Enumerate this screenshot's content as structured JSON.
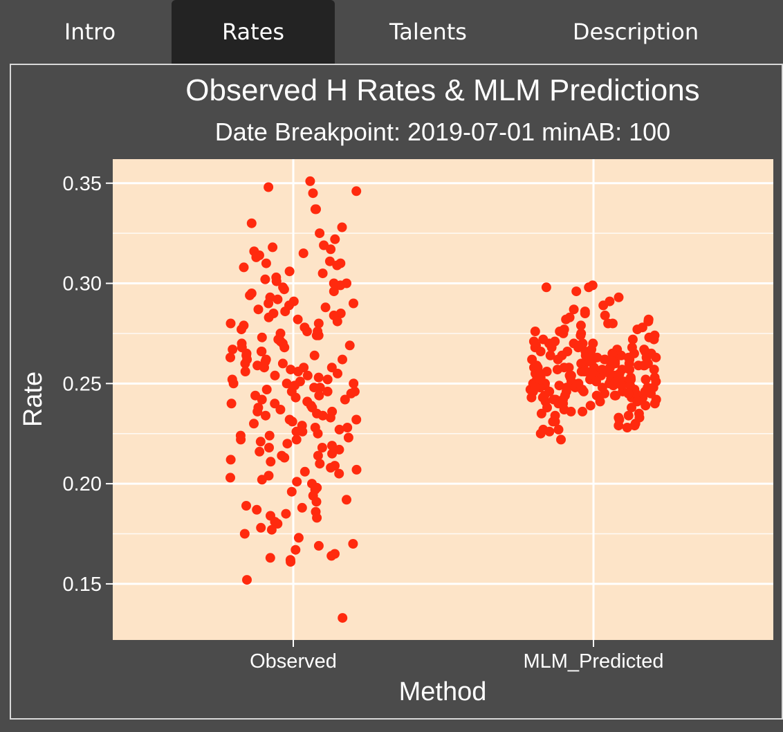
{
  "tabs": [
    {
      "label": "Intro",
      "active": false
    },
    {
      "label": "Rates",
      "active": true
    },
    {
      "label": "Talents",
      "active": false
    },
    {
      "label": "Description",
      "active": false
    }
  ],
  "chart_data": {
    "type": "scatter",
    "title": "Observed H Rates & MLM Predictions",
    "subtitle": "Date Breakpoint: 2019-07-01  minAB: 100",
    "xlabel": "Method",
    "ylabel": "Rate",
    "categories": [
      "Observed",
      "MLM_Predicted"
    ],
    "ylim": [
      0.122,
      0.362
    ],
    "yticks": [
      0.15,
      0.2,
      0.25,
      0.3,
      0.35
    ],
    "ytick_labels": [
      "0.15",
      "0.20",
      "0.25",
      "0.30",
      "0.35"
    ],
    "grid": true,
    "jitter": true,
    "point_color": "#ff2a0e",
    "panel_background": "#fde4c8",
    "series": [
      {
        "category": "Observed",
        "values": [
          0.345,
          0.348,
          0.351,
          0.346,
          0.337,
          0.337,
          0.33,
          0.328,
          0.325,
          0.322,
          0.319,
          0.318,
          0.317,
          0.316,
          0.315,
          0.314,
          0.313,
          0.311,
          0.31,
          0.309,
          0.308,
          0.306,
          0.305,
          0.303,
          0.302,
          0.301,
          0.3,
          0.299,
          0.298,
          0.297,
          0.296,
          0.295,
          0.294,
          0.293,
          0.292,
          0.291,
          0.29,
          0.289,
          0.288,
          0.287,
          0.286,
          0.285,
          0.284,
          0.283,
          0.282,
          0.281,
          0.28,
          0.279,
          0.278,
          0.277,
          0.276,
          0.275,
          0.274,
          0.273,
          0.272,
          0.271,
          0.27,
          0.269,
          0.268,
          0.267,
          0.266,
          0.265,
          0.264,
          0.263,
          0.262,
          0.261,
          0.26,
          0.259,
          0.258,
          0.257,
          0.256,
          0.255,
          0.254,
          0.253,
          0.252,
          0.251,
          0.25,
          0.249,
          0.248,
          0.247,
          0.246,
          0.245,
          0.244,
          0.243,
          0.242,
          0.241,
          0.24,
          0.239,
          0.238,
          0.237,
          0.236,
          0.235,
          0.234,
          0.233,
          0.232,
          0.231,
          0.23,
          0.229,
          0.228,
          0.227,
          0.226,
          0.225,
          0.224,
          0.223,
          0.222,
          0.221,
          0.22,
          0.219,
          0.218,
          0.217,
          0.216,
          0.215,
          0.214,
          0.213,
          0.212,
          0.211,
          0.21,
          0.209,
          0.208,
          0.207,
          0.206,
          0.205,
          0.204,
          0.203,
          0.202,
          0.201,
          0.2,
          0.198,
          0.197,
          0.196,
          0.194,
          0.192,
          0.191,
          0.189,
          0.188,
          0.187,
          0.186,
          0.185,
          0.184,
          0.183,
          0.181,
          0.18,
          0.178,
          0.177,
          0.175,
          0.173,
          0.17,
          0.169,
          0.167,
          0.165,
          0.164,
          0.163,
          0.162,
          0.161,
          0.152,
          0.133,
          0.285,
          0.28,
          0.276,
          0.272,
          0.268,
          0.264,
          0.26,
          0.256,
          0.252,
          0.248,
          0.244,
          0.24,
          0.236,
          0.232,
          0.228,
          0.224,
          0.27,
          0.262,
          0.254,
          0.246,
          0.238,
          0.266,
          0.258,
          0.25,
          0.242,
          0.234,
          0.29,
          0.3,
          0.31,
          0.226,
          0.218,
          0.222,
          0.214,
          0.274,
          0.258,
          0.262,
          0.246,
          0.25
        ]
      },
      {
        "category": "MLM_Predicted",
        "values": [
          0.298,
          0.299,
          0.298,
          0.296,
          0.293,
          0.291,
          0.289,
          0.287,
          0.286,
          0.285,
          0.284,
          0.283,
          0.282,
          0.281,
          0.28,
          0.279,
          0.278,
          0.277,
          0.276,
          0.275,
          0.274,
          0.273,
          0.272,
          0.271,
          0.27,
          0.269,
          0.268,
          0.267,
          0.266,
          0.265,
          0.264,
          0.263,
          0.262,
          0.261,
          0.26,
          0.259,
          0.258,
          0.257,
          0.256,
          0.255,
          0.254,
          0.253,
          0.252,
          0.251,
          0.25,
          0.249,
          0.248,
          0.247,
          0.246,
          0.245,
          0.244,
          0.243,
          0.242,
          0.241,
          0.24,
          0.239,
          0.238,
          0.237,
          0.236,
          0.235,
          0.234,
          0.233,
          0.232,
          0.231,
          0.23,
          0.229,
          0.228,
          0.227,
          0.226,
          0.225,
          0.222,
          0.27,
          0.266,
          0.262,
          0.258,
          0.254,
          0.25,
          0.246,
          0.242,
          0.268,
          0.264,
          0.26,
          0.256,
          0.252,
          0.248,
          0.244,
          0.272,
          0.266,
          0.261,
          0.257,
          0.253,
          0.249,
          0.245,
          0.241,
          0.263,
          0.259,
          0.255,
          0.251,
          0.247,
          0.243,
          0.276,
          0.271,
          0.265,
          0.26,
          0.256,
          0.252,
          0.248,
          0.244,
          0.239,
          0.267,
          0.263,
          0.258,
          0.254,
          0.25,
          0.246,
          0.242,
          0.269,
          0.264,
          0.259,
          0.255,
          0.251,
          0.247,
          0.243,
          0.274,
          0.268,
          0.262,
          0.257,
          0.253,
          0.249,
          0.245,
          0.24,
          0.265,
          0.261,
          0.256,
          0.252,
          0.248,
          0.244,
          0.27,
          0.266,
          0.262,
          0.258,
          0.254,
          0.25,
          0.246,
          0.242,
          0.26,
          0.256,
          0.252,
          0.248,
          0.264,
          0.258,
          0.253,
          0.249,
          0.245,
          0.268,
          0.262,
          0.257,
          0.251,
          0.246,
          0.241,
          0.236,
          0.233,
          0.28,
          0.275,
          0.27,
          0.266,
          0.262,
          0.257,
          0.253,
          0.248,
          0.244,
          0.24,
          0.235,
          0.231,
          0.227,
          0.282,
          0.277,
          0.272,
          0.267,
          0.263,
          0.259,
          0.255,
          0.251,
          0.247,
          0.243,
          0.238,
          0.234,
          0.229,
          0.265,
          0.261,
          0.257,
          0.253,
          0.249,
          0.245,
          0.262,
          0.258,
          0.254,
          0.25,
          0.246,
          0.256,
          0.252,
          0.248,
          0.259,
          0.255,
          0.251
        ]
      }
    ]
  }
}
